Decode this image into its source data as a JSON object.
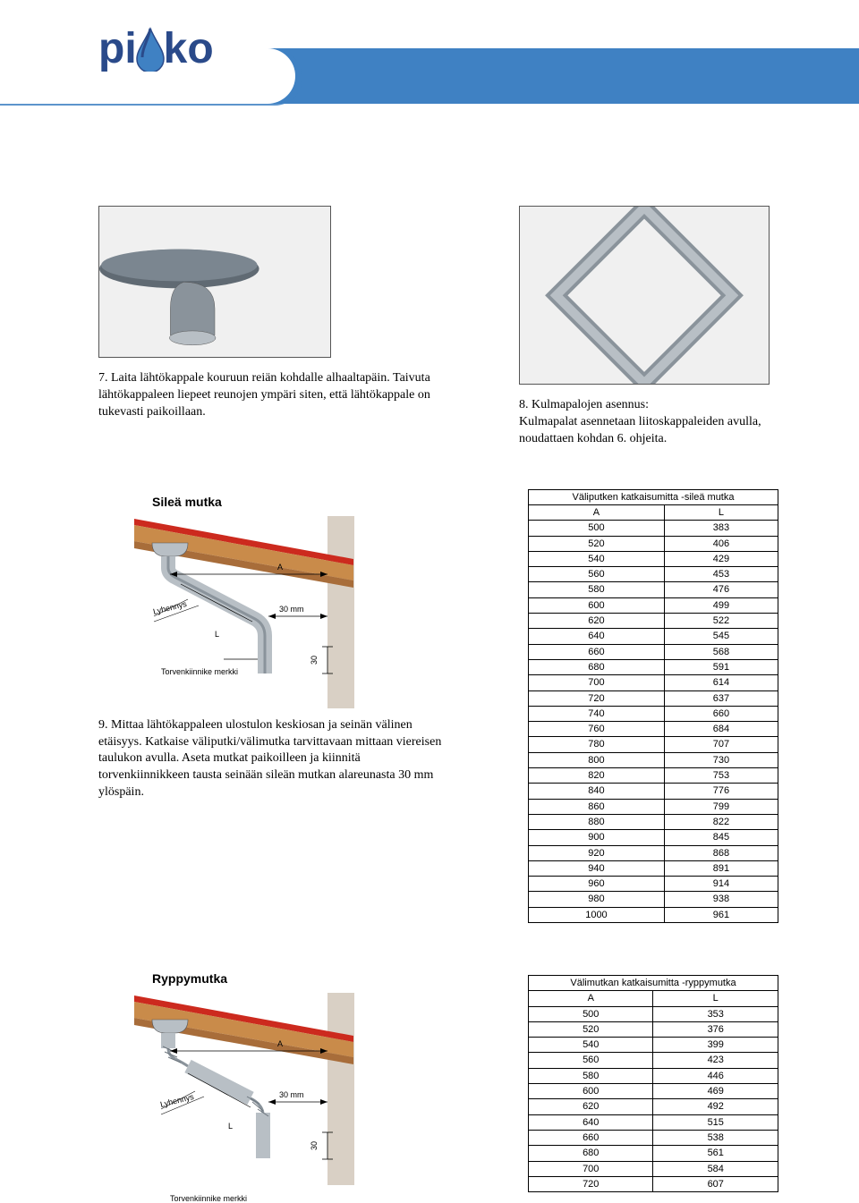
{
  "logo": {
    "text_left": "pi",
    "text_right": "ko"
  },
  "step7": "7. Laita lähtökappale kouruun reiän kohdalle alhaaltapäin. Taivuta lähtökappaleen liepeet reunojen ympäri siten, että lähtökappale on tukevasti paikoillaan.",
  "step8": "8. Kulmapalojen asennus:\nKulmapalat asennetaan liitoskappaleiden avulla, noudattaen kohdan 6. ohjeita.",
  "section1": {
    "title": "Sileä mutka",
    "labels": {
      "A": "A",
      "L": "L",
      "lyhennys": "Lyhennys",
      "mm30": "30 mm",
      "v30": "30",
      "torvenkiinnike": "Torvenkiinnike merkki"
    }
  },
  "step9": "9. Mittaa lähtökappaleen ulostulon keskiosan ja seinän välinen etäisyys. Katkaise väliputki/välimutka tarvittavaan mittaan viereisen taulukon avulla. Aseta mutkat paikoilleen ja kiinnitä torvenkiinnikkeen tausta seinään sileän mutkan alareunasta 30 mm ylöspäin.",
  "table1": {
    "title": "Väliputken katkaisumitta -sileä mutka",
    "columns": [
      "A",
      "L"
    ],
    "rows": [
      [
        "500",
        "383"
      ],
      [
        "520",
        "406"
      ],
      [
        "540",
        "429"
      ],
      [
        "560",
        "453"
      ],
      [
        "580",
        "476"
      ],
      [
        "600",
        "499"
      ],
      [
        "620",
        "522"
      ],
      [
        "640",
        "545"
      ],
      [
        "660",
        "568"
      ],
      [
        "680",
        "591"
      ],
      [
        "700",
        "614"
      ],
      [
        "720",
        "637"
      ],
      [
        "740",
        "660"
      ],
      [
        "760",
        "684"
      ],
      [
        "780",
        "707"
      ],
      [
        "800",
        "730"
      ],
      [
        "820",
        "753"
      ],
      [
        "840",
        "776"
      ],
      [
        "860",
        "799"
      ],
      [
        "880",
        "822"
      ],
      [
        "900",
        "845"
      ],
      [
        "920",
        "868"
      ],
      [
        "940",
        "891"
      ],
      [
        "960",
        "914"
      ],
      [
        "980",
        "938"
      ],
      [
        "1000",
        "961"
      ]
    ]
  },
  "section2": {
    "title": "Ryppymutka",
    "labels": {
      "A": "A",
      "L": "L",
      "lyhennys": "Lyhennys",
      "mm30": "30 mm",
      "v30": "30",
      "torvenkiinnike": "Torvenkiinnike merkki"
    }
  },
  "table2": {
    "title": "Välimutkan katkaisumitta -ryppymutka",
    "columns": [
      "A",
      "L"
    ],
    "rows": [
      [
        "500",
        "353"
      ],
      [
        "520",
        "376"
      ],
      [
        "540",
        "399"
      ],
      [
        "560",
        "423"
      ],
      [
        "580",
        "446"
      ],
      [
        "600",
        "469"
      ],
      [
        "620",
        "492"
      ],
      [
        "640",
        "515"
      ],
      [
        "660",
        "538"
      ],
      [
        "680",
        "561"
      ],
      [
        "700",
        "584"
      ],
      [
        "720",
        "607"
      ]
    ]
  },
  "colors": {
    "brand_blue": "#3f81c3",
    "brand_dark": "#2a4a8a",
    "roof_red": "#cc2a1e",
    "wood": "#c98b4a",
    "wall": "#d9d0c5",
    "pipe": "#b8bfc5",
    "border": "#000000"
  }
}
